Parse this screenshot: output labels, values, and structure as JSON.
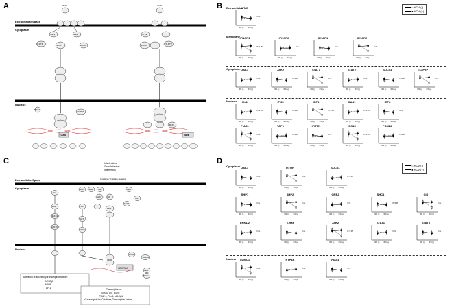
{
  "panels": {
    "A": "A",
    "B": "B",
    "C": "C",
    "D": "D"
  },
  "panelA": {
    "extracellular": "Extracellular Space",
    "cytoplasm": "Cytoplasm",
    "nucleus": "Nucleus",
    "nodes": {
      "ifng": "IFNG",
      "ifna": "IFNA",
      "ifngr1": "IFNGR1",
      "ifngr2": "IFNGR2",
      "ifnar1": "IFNAR1",
      "ifnar2": "IFNAR2",
      "jak1": "JAK1",
      "jak2": "JAK2",
      "tyk2": "TYK2",
      "tcptp": "TC-PTP",
      "socs1": "SOCS1",
      "stat1": "STAT1",
      "stat2": "STAT2",
      "pias1": "PIAS1",
      "gas": "GAS",
      "isre": "ISRE",
      "irf9": "IRF9"
    },
    "gas_targets": [
      "TAP1",
      "IFITM1",
      "ISG",
      "PSMB8",
      "IFI35",
      "IRF9"
    ],
    "isre_targets": [
      "IRF1",
      "OAS1",
      "IFITM1",
      "MX1",
      "ISG15",
      "IRF8",
      "IRF7",
      "IFI35",
      "PSMB8"
    ]
  },
  "panelB": {
    "legend": [
      "HCV (-)",
      "HCV (+)"
    ],
    "ylabel": "Signal intensity",
    "xlabels": [
      "IFN (-)",
      "IFN (+)"
    ],
    "sections": {
      "extracellular": "Extracellular",
      "membrane": "Membrane",
      "cytoplasm": "Cytoplasm",
      "nucleus": "Nucleus"
    },
    "plots": [
      {
        "title": "IFNG",
        "p": "N.S."
      },
      {
        "title": "IFNGR1",
        "p": "P<0.05"
      },
      {
        "title": "IFNGR2",
        "p": "N.S."
      },
      {
        "title": "IFNAR1",
        "p": "N.S."
      },
      {
        "title": "IFNAR2",
        "p": "N.S."
      },
      {
        "title": "JAK1",
        "p": "N.S."
      },
      {
        "title": "JAK2",
        "p": "P<0.05"
      },
      {
        "title": "STAT1",
        "p": "N.S."
      },
      {
        "title": "STAT2",
        "p": "N.S."
      },
      {
        "title": "SOCS1",
        "p": "P<0.05"
      },
      {
        "title": "TC-PTP",
        "p": "N.S."
      },
      {
        "title": "Mx1",
        "p": "P<0.05"
      },
      {
        "title": "IFI35",
        "p": "P<0.05"
      },
      {
        "title": "IRF1",
        "p": "P<0.05"
      },
      {
        "title": "OAS1",
        "p": "P<0.05"
      },
      {
        "title": "IRF8",
        "p": "N.S."
      },
      {
        "title": "PIAS1",
        "p": "N.S."
      },
      {
        "title": "TAP1",
        "p": "P<0.05"
      },
      {
        "title": "IFITM1",
        "p": "N.S."
      },
      {
        "title": "ISG15",
        "p": "P<0.05"
      },
      {
        "title": "PSMB8",
        "p": "P<0.05"
      }
    ]
  },
  "panelC": {
    "extracellular": "Extracellular Space",
    "cytoplasm": "Cytoplasm",
    "nucleus": "Nucleus",
    "signals": [
      "Interleukins",
      "Growth factors",
      "Interferons"
    ],
    "receptor": "Cytokine / Cytokine receptor",
    "nodes": [
      "GRB2",
      "SHC",
      "SOS",
      "SHP1",
      "SHP2",
      "JAK",
      "SOCS",
      "CIS",
      "Ras",
      "c-Raf",
      "MEK1/2",
      "ERK1/2",
      "PI3K",
      "AKT",
      "mTOR",
      "STAT",
      "PTP1B",
      "SUMO1",
      "PIAS",
      "p21Cip1"
    ],
    "box1_title": "Activation of accessory transcription factors:",
    "box1_lines": [
      "C/EBPβ",
      "NFκB",
      "AP-1"
    ],
    "box2_title": "Transcription of:",
    "box2_lines": [
      "SOCS, CIS, c-Myc",
      "TIMP-1, Pim-1, p21Cip1",
      "α2-macroglobulin, Cytokines, Transcription factors"
    ],
    "isre": "ISRE/GAS"
  },
  "panelD": {
    "legend": [
      "HCV (-)",
      "HCV (+)"
    ],
    "sections": {
      "cytoplasm": "Cytoplasm",
      "nucleus": "Nuclear"
    },
    "plots": [
      {
        "title": "JAK1",
        "p": "N.S."
      },
      {
        "title": "mTOR",
        "p": "N.S."
      },
      {
        "title": "SOCS1",
        "p": "P<0.05"
      },
      {
        "title": "SHP1",
        "p": "N.S."
      },
      {
        "title": "SHP2",
        "p": "N.S."
      },
      {
        "title": "GRB2",
        "p": "N.S."
      },
      {
        "title": "SHC1",
        "p": "P<0.05"
      },
      {
        "title": "CIS",
        "p": "N.S."
      },
      {
        "title": "ERK1/2",
        "p": "N.S."
      },
      {
        "title": "c-Raf",
        "p": "N.S."
      },
      {
        "title": "JAK2",
        "p": "P<0.05"
      },
      {
        "title": "STAT1",
        "p": "N.S."
      },
      {
        "title": "STAT3",
        "p": "N.S."
      },
      {
        "title": "SUMO1",
        "p": "N.S."
      },
      {
        "title": "PTP1B",
        "p": "N.S."
      },
      {
        "title": "PIAS1",
        "p": "N.S."
      }
    ]
  }
}
